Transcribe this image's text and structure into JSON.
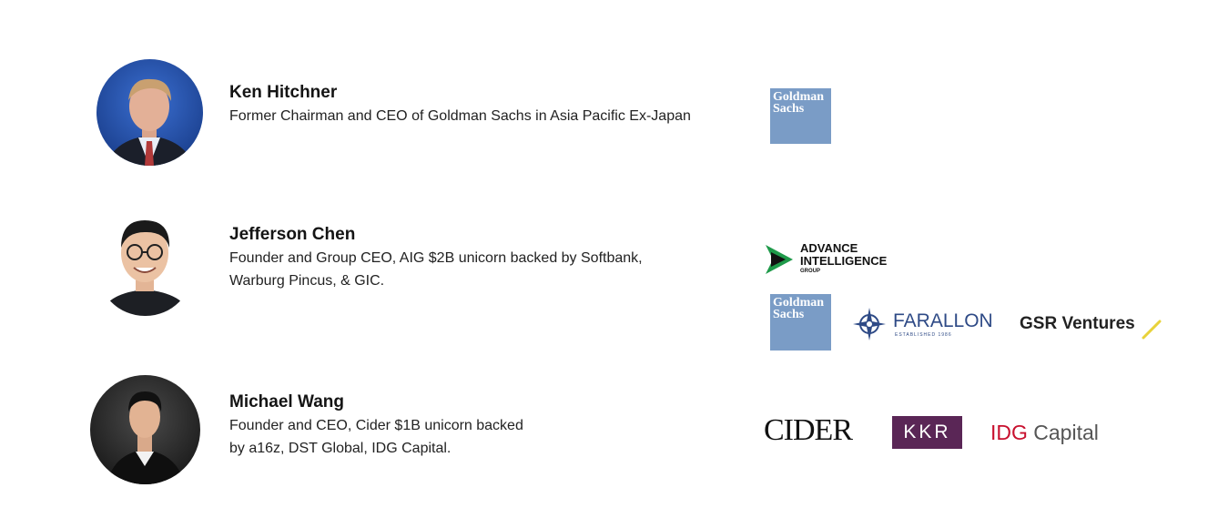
{
  "people": [
    {
      "name": "Ken Hitchner",
      "desc_lines": [
        "Former Chairman and CEO of Goldman Sachs in Asia Pacific Ex-Japan"
      ]
    },
    {
      "name": "Jefferson Chen",
      "desc_lines": [
        "Founder and Group CEO, AIG $2B unicorn backed by Softbank,",
        "Warburg Pincus, & GIC."
      ]
    },
    {
      "name": "Michael Wang",
      "desc_lines": [
        "Founder and CEO, Cider $1B unicorn backed",
        "by a16z, DST Global, IDG Capital."
      ]
    }
  ],
  "logos": {
    "goldman_line1": "Goldman",
    "goldman_line2": "Sachs",
    "aig_line1": "ADVANCE",
    "aig_line2": "INTELLIGENCE",
    "aig_line3": "GROUP",
    "farallon": "FARALLON",
    "farallon_sub": "ESTABLISHED 1986",
    "gsr": "GSR Ventures",
    "cider": "CIDER",
    "kkr": "KKR",
    "idg_mark": "IDG",
    "idg_rest": " Capital"
  },
  "colors": {
    "goldman_blue": "#7a9cc6",
    "kkr_purple": "#5a2656",
    "idg_red": "#c8102e",
    "farallon_blue": "#2e4a86",
    "aig_green": "#1f9a4a",
    "gsr_accent": "#e8d23a"
  }
}
